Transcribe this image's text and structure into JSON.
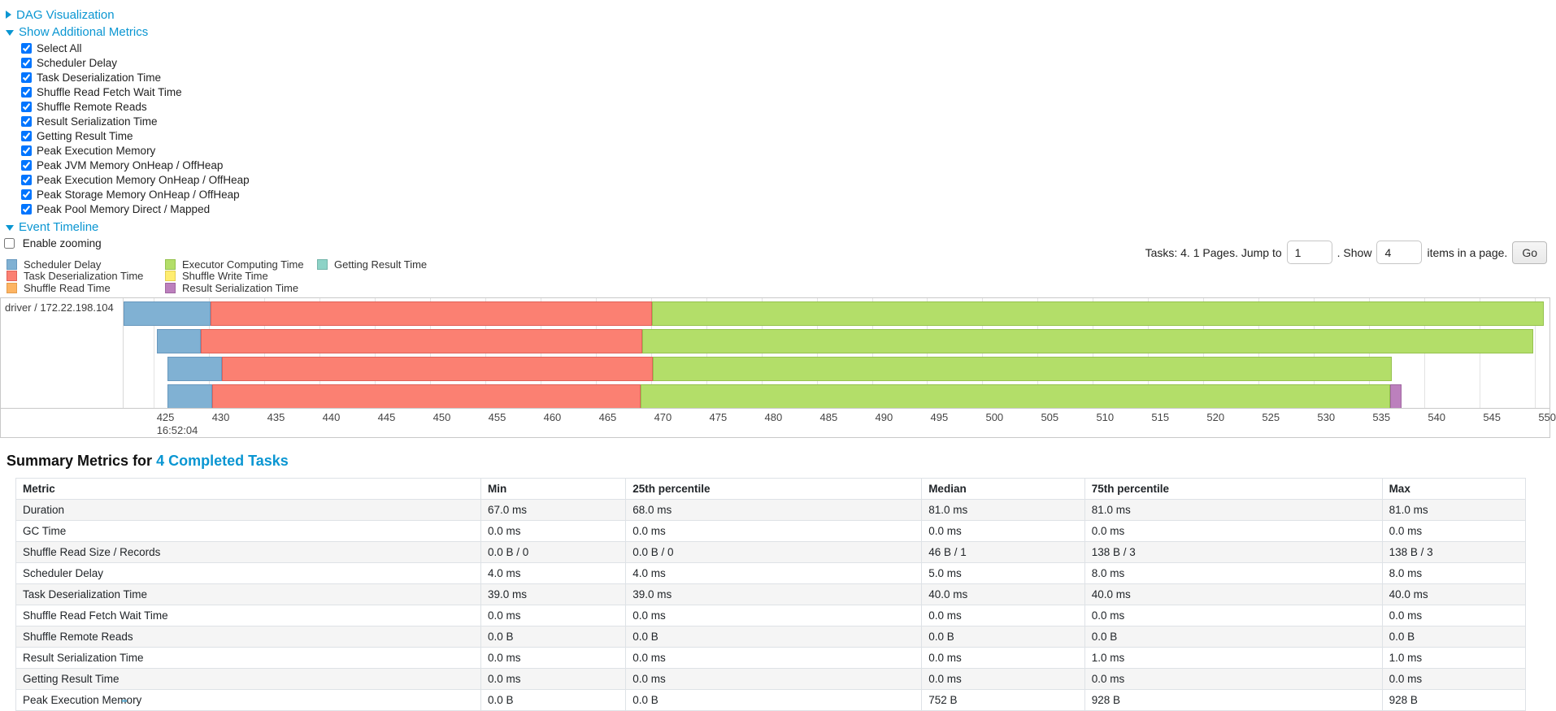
{
  "colors": {
    "link": "#0a96d2",
    "segments": {
      "scheduler_delay": {
        "fill": "#80B1D3",
        "border": "#6898BE"
      },
      "task_deserialization": {
        "fill": "#FB8072",
        "border": "#E06159"
      },
      "shuffle_read": {
        "fill": "#FDB462",
        "border": "#E39C4D"
      },
      "executor_computing": {
        "fill": "#B3DE69",
        "border": "#95C24E"
      },
      "shuffle_write": {
        "fill": "#FFED6F",
        "border": "#E3CE53"
      },
      "result_serialization": {
        "fill": "#BC80BD",
        "border": "#A066A1"
      },
      "getting_result": {
        "fill": "#8DD3C7",
        "border": "#74B5AA"
      }
    }
  },
  "sections": {
    "dag": {
      "label": "DAG Visualization",
      "collapsed": true
    },
    "metrics": {
      "label": "Show Additional Metrics",
      "items": [
        {
          "label": "Select All",
          "checked": true
        },
        {
          "label": "Scheduler Delay",
          "checked": true
        },
        {
          "label": "Task Deserialization Time",
          "checked": true
        },
        {
          "label": "Shuffle Read Fetch Wait Time",
          "checked": true
        },
        {
          "label": "Shuffle Remote Reads",
          "checked": true
        },
        {
          "label": "Result Serialization Time",
          "checked": true
        },
        {
          "label": "Getting Result Time",
          "checked": true
        },
        {
          "label": "Peak Execution Memory",
          "checked": true
        },
        {
          "label": "Peak JVM Memory OnHeap / OffHeap",
          "checked": true
        },
        {
          "label": "Peak Execution Memory OnHeap / OffHeap",
          "checked": true
        },
        {
          "label": "Peak Storage Memory OnHeap / OffHeap",
          "checked": true
        },
        {
          "label": "Peak Pool Memory Direct / Mapped",
          "checked": true
        }
      ]
    },
    "timeline": {
      "label": "Event Timeline",
      "enable_zooming": {
        "label": "Enable zooming",
        "checked": false
      }
    }
  },
  "legend": {
    "columns": [
      [
        {
          "key": "scheduler_delay",
          "label": "Scheduler Delay"
        },
        {
          "key": "task_deserialization",
          "label": "Task Deserialization Time"
        },
        {
          "key": "shuffle_read",
          "label": "Shuffle Read Time"
        }
      ],
      [
        {
          "key": "executor_computing",
          "label": "Executor Computing Time"
        },
        {
          "key": "shuffle_write",
          "label": "Shuffle Write Time"
        },
        {
          "key": "result_serialization",
          "label": "Result Serialization Time"
        }
      ],
      [
        {
          "key": "getting_result",
          "label": "Getting Result Time"
        }
      ]
    ]
  },
  "pagination": {
    "prefix": "Tasks: 4. 1 Pages. Jump to",
    "jump_value": "1",
    "middle": ". Show",
    "show_value": "4",
    "suffix": "items in a page.",
    "go_label": "Go"
  },
  "chart_data": {
    "type": "timeline",
    "title": "Event Timeline",
    "group_label": "driver / 172.22.198.104",
    "x_axis": {
      "unit": "milliseconds within second 16:52:04",
      "range": [
        422.3,
        551.3
      ],
      "ticks": [
        425,
        430,
        435,
        440,
        445,
        450,
        455,
        460,
        465,
        470,
        475,
        480,
        485,
        490,
        495,
        500,
        505,
        510,
        515,
        520,
        525,
        530,
        535,
        540,
        545,
        550
      ],
      "second_label": "16:52:04"
    },
    "tasks": [
      {
        "segments": [
          {
            "key": "scheduler_delay",
            "start": 422.3,
            "end": 430.2
          },
          {
            "key": "task_deserialization",
            "start": 430.2,
            "end": 470.1
          },
          {
            "key": "executor_computing",
            "start": 470.1,
            "end": 550.8
          }
        ]
      },
      {
        "segments": [
          {
            "key": "scheduler_delay",
            "start": 425.3,
            "end": 429.3
          },
          {
            "key": "task_deserialization",
            "start": 429.3,
            "end": 469.2
          },
          {
            "key": "executor_computing",
            "start": 469.2,
            "end": 549.8
          }
        ]
      },
      {
        "segments": [
          {
            "key": "scheduler_delay",
            "start": 426.3,
            "end": 431.2
          },
          {
            "key": "task_deserialization",
            "start": 431.2,
            "end": 470.2
          },
          {
            "key": "executor_computing",
            "start": 470.2,
            "end": 537.0
          }
        ]
      },
      {
        "segments": [
          {
            "key": "scheduler_delay",
            "start": 426.3,
            "end": 430.3
          },
          {
            "key": "task_deserialization",
            "start": 430.3,
            "end": 469.1
          },
          {
            "key": "executor_computing",
            "start": 469.1,
            "end": 536.9
          },
          {
            "key": "result_serialization",
            "start": 536.9,
            "end": 537.9
          }
        ]
      }
    ]
  },
  "summary": {
    "title_prefix": "Summary Metrics for ",
    "title_link": "4 Completed Tasks",
    "table": {
      "headers": [
        "Metric",
        "Min",
        "25th percentile",
        "Median",
        "75th percentile",
        "Max"
      ],
      "rows": [
        {
          "metric": "Duration",
          "values": [
            "67.0 ms",
            "68.0 ms",
            "81.0 ms",
            "81.0 ms",
            "81.0 ms"
          ]
        },
        {
          "metric": "GC Time",
          "values": [
            "0.0 ms",
            "0.0 ms",
            "0.0 ms",
            "0.0 ms",
            "0.0 ms"
          ]
        },
        {
          "metric": "Shuffle Read Size / Records",
          "values": [
            "0.0 B / 0",
            "0.0 B / 0",
            "46 B / 1",
            "138 B / 3",
            "138 B / 3"
          ]
        },
        {
          "metric": "Scheduler Delay",
          "values": [
            "4.0 ms",
            "4.0 ms",
            "5.0 ms",
            "8.0 ms",
            "8.0 ms"
          ]
        },
        {
          "metric": "Task Deserialization Time",
          "values": [
            "39.0 ms",
            "39.0 ms",
            "40.0 ms",
            "40.0 ms",
            "40.0 ms"
          ]
        },
        {
          "metric": "Shuffle Read Fetch Wait Time",
          "values": [
            "0.0 ms",
            "0.0 ms",
            "0.0 ms",
            "0.0 ms",
            "0.0 ms"
          ]
        },
        {
          "metric": "Shuffle Remote Reads",
          "values": [
            "0.0 B",
            "0.0 B",
            "0.0 B",
            "0.0 B",
            "0.0 B"
          ]
        },
        {
          "metric": "Result Serialization Time",
          "values": [
            "0.0 ms",
            "0.0 ms",
            "0.0 ms",
            "1.0 ms",
            "1.0 ms"
          ]
        },
        {
          "metric": "Getting Result Time",
          "values": [
            "0.0 ms",
            "0.0 ms",
            "0.0 ms",
            "0.0 ms",
            "0.0 ms"
          ]
        },
        {
          "metric": "Peak Execution Memory",
          "values": [
            "0.0 B",
            "0.0 B",
            "752 B",
            "928 B",
            "928 B"
          ]
        }
      ]
    }
  }
}
